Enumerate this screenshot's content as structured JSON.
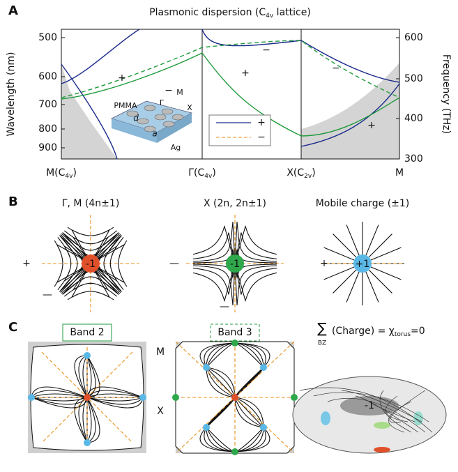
{
  "panel_a": {
    "label": "A",
    "title": [
      "Plasmonic dispersion (C",
      "4v",
      " lattice)"
    ],
    "y_label": "Wavelength (nm)",
    "y2_label": "Frequency (THz)",
    "y_ticks": [
      500,
      600,
      700,
      800,
      900
    ],
    "y2_ticks": [
      600,
      500,
      400,
      300
    ],
    "x_labels": [
      [
        "M(C",
        "4v",
        ")"
      ],
      [
        "Γ(C",
        "4v",
        ")"
      ],
      [
        "X(C",
        "2v",
        ")"
      ],
      [
        "M"
      ]
    ],
    "signs": [
      "+",
      "−",
      "+",
      "−",
      "−",
      "+"
    ],
    "inset": [
      "PMMA",
      "M",
      "Γ",
      "X",
      "d",
      "a",
      "Ag"
    ],
    "legend": [
      "+",
      "−"
    ]
  },
  "panel_b": {
    "label": "B",
    "titles": [
      "Γ, M (4n±1)",
      "X (2n, 2n±1)",
      "Mobile charge (±1)"
    ],
    "charges": [
      "-1",
      "-1",
      "+1"
    ],
    "signs": [
      "+",
      "—",
      "—",
      "—",
      "+"
    ]
  },
  "panel_c": {
    "label": "C",
    "bands": [
      "Band 2",
      "Band 3"
    ],
    "points": [
      "M",
      "X"
    ],
    "sum": "∑",
    "sum_sub": "BZ",
    "formula": [
      "(Charge) = χ",
      "torus",
      "=0"
    ],
    "torus_charge": "-1"
  }
}
